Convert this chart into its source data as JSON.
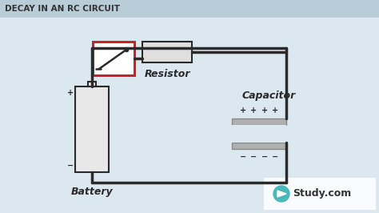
{
  "title": "DECAY IN AN RC CIRCUIT",
  "title_color": "#333333",
  "title_fontsize": 7.5,
  "bg_color": "#dce8f0",
  "header_bg": "#b8cdd8",
  "circuit_line_color": "#2a2a2a",
  "circuit_lw": 2.5,
  "battery_label": "Battery",
  "resistor_label": "Resistor",
  "capacitor_label": "Capacitor",
  "label_fontsize": 9,
  "label_style": "italic",
  "label_weight": "bold",
  "plus_minus_fontsize": 7,
  "switch_box_color": "#cc2222",
  "resistor_box_color": "#cccccc",
  "battery_box_color": "#cccccc",
  "capacitor_plate_color": "#aaaaaa",
  "studycom_text": "Study.com",
  "studycom_fontsize": 9
}
